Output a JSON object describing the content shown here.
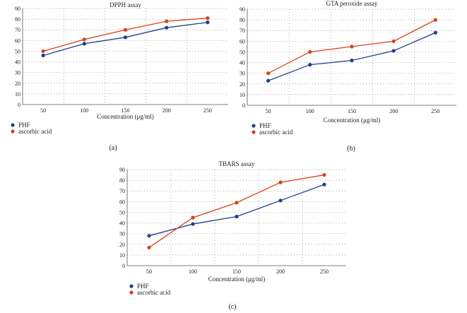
{
  "figure": {
    "panel_labels": [
      "(a)",
      "(b)",
      "(c)"
    ]
  },
  "colors": {
    "PHF": "#1f3f8a",
    "ascorbic acid": "#d9401a",
    "axis": "#555555",
    "grid": "#888888"
  },
  "chart_data": [
    {
      "type": "line",
      "title": "DPPH assay",
      "xlabel": "Concentration (μg/ml)",
      "ylabel": "",
      "categories": [
        "50",
        "100",
        "150",
        "200",
        "250"
      ],
      "ylim": [
        0,
        90
      ],
      "yticks": [
        "0",
        "10",
        "20",
        "30",
        "40",
        "50",
        "60",
        "70",
        "80",
        "90"
      ],
      "grid": true,
      "legend": "bottom-left",
      "series": [
        {
          "name": "PHF",
          "values": [
            46,
            57,
            63,
            72,
            77
          ]
        },
        {
          "name": "ascorbic acid",
          "values": [
            50,
            61,
            70,
            78,
            81
          ]
        }
      ]
    },
    {
      "type": "line",
      "title": "GTA peroxide assay",
      "xlabel": "Concentration (μg/ml)",
      "ylabel": "",
      "categories": [
        "50",
        "100",
        "150",
        "200",
        "250"
      ],
      "ylim": [
        0,
        90
      ],
      "yticks": [
        "0",
        "10",
        "20",
        "30",
        "40",
        "50",
        "60",
        "70",
        "80",
        "90"
      ],
      "grid": true,
      "legend": "bottom-left",
      "series": [
        {
          "name": "PHF",
          "values": [
            23,
            38,
            42,
            51,
            68
          ]
        },
        {
          "name": "ascorbic acid",
          "values": [
            30,
            50,
            55,
            60,
            80
          ]
        }
      ]
    },
    {
      "type": "line",
      "title": "TBARS assay",
      "xlabel": "Concentration (μg/ml)",
      "ylabel": "",
      "categories": [
        "50",
        "100",
        "150",
        "200",
        "250"
      ],
      "ylim": [
        0,
        90
      ],
      "yticks": [
        "0",
        "10",
        "20",
        "30",
        "40",
        "50",
        "60",
        "70",
        "80",
        "90"
      ],
      "grid": true,
      "legend": "bottom-left",
      "series": [
        {
          "name": "PHF",
          "values": [
            28,
            39,
            46,
            61,
            76
          ]
        },
        {
          "name": "ascorbic acid",
          "values": [
            17,
            45,
            59,
            78,
            85
          ]
        }
      ]
    }
  ]
}
